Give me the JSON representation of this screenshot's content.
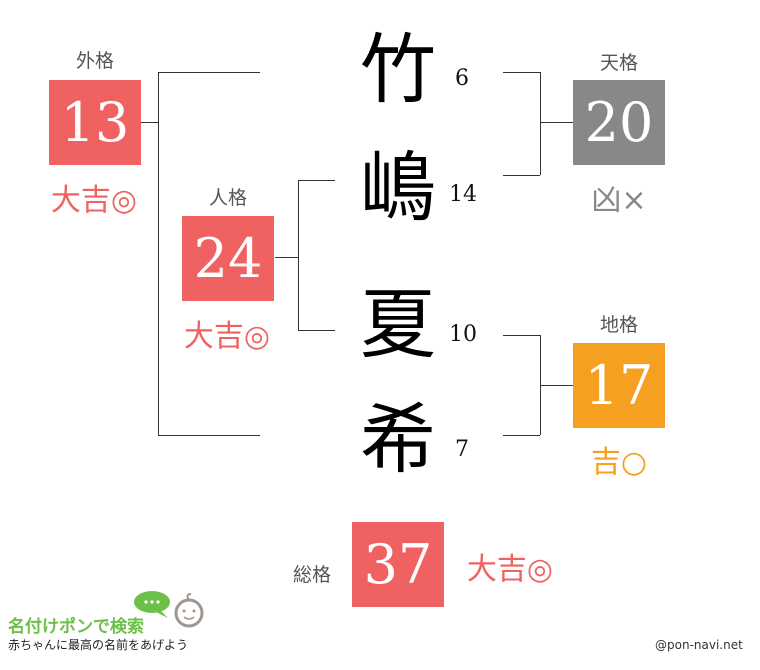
{
  "name": {
    "chars": [
      "竹",
      "嶋",
      "夏",
      "希"
    ],
    "strokes": [
      "6",
      "14",
      "10",
      "7"
    ]
  },
  "gaikaku": {
    "label": "外格",
    "value": "13",
    "result": "大吉◎",
    "color": "#f06262"
  },
  "jinkaku": {
    "label": "人格",
    "value": "24",
    "result": "大吉◎",
    "color": "#f06262"
  },
  "tenkaku": {
    "label": "天格",
    "value": "20",
    "result": "凶×",
    "color": "#888888"
  },
  "chikaku": {
    "label": "地格",
    "value": "17",
    "result": "吉○",
    "color": "#f5a020"
  },
  "soukaku": {
    "label": "総格",
    "value": "37",
    "result": "大吉◎",
    "color": "#f06262"
  },
  "logo": {
    "title": "名付けポンで検索",
    "tagline": "赤ちゃんに最高の名前をあげよう"
  },
  "credit": "@pon-navi.net"
}
